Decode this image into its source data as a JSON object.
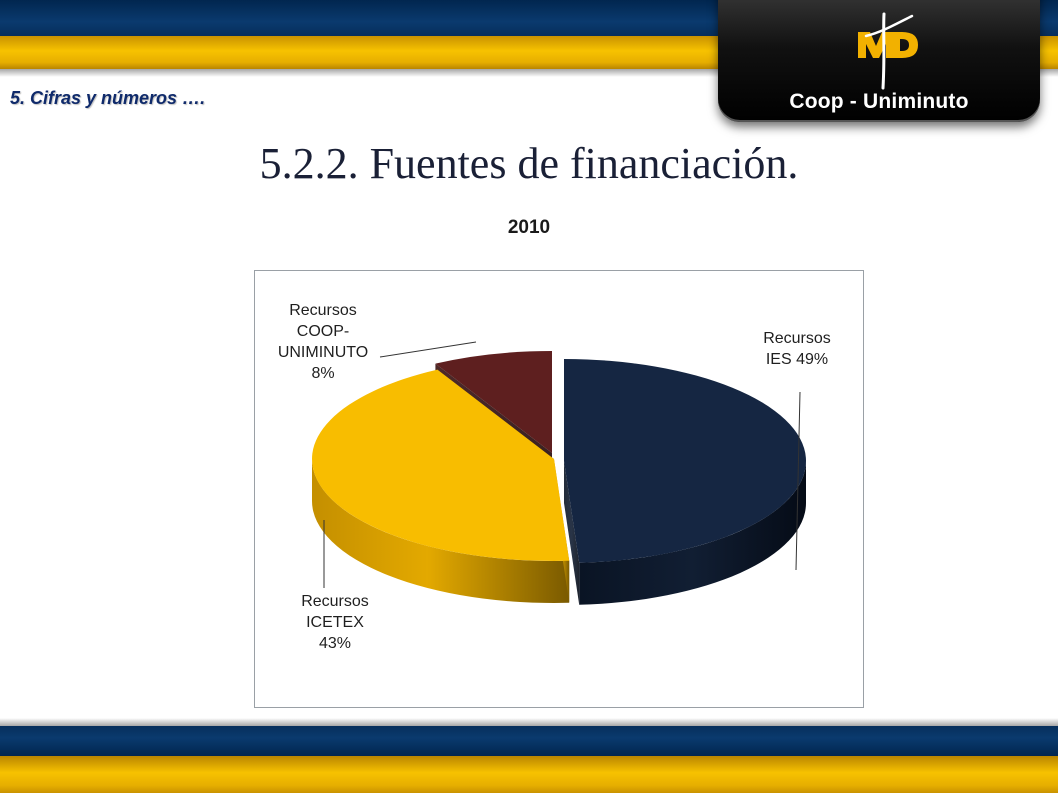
{
  "header": {
    "logo_text": "Coop - Uniminuto",
    "logo_mark_icon": "md-cross-logo-icon"
  },
  "section_label": "5. Cifras y números ….",
  "slide_title": "5.2.2. Fuentes de financiación.",
  "colors": {
    "navy": "#152642",
    "gold": "#f8bd00",
    "maroon": "#5e1f1f",
    "band_blue": "#0a3a6e",
    "band_gold": "#f7c200"
  },
  "chart_data": {
    "type": "pie",
    "title": "2010",
    "labels_on_chart": true,
    "slices": [
      {
        "name": "Recursos IES",
        "value": 49,
        "percent_label": "49%",
        "label_lines": [
          "Recursos",
          "IES 49%"
        ],
        "color": "#152642"
      },
      {
        "name": "Recursos ICETEX",
        "value": 43,
        "percent_label": "43%",
        "label_lines": [
          "Recursos",
          "ICETEX",
          "43%"
        ],
        "color": "#f8bd00"
      },
      {
        "name": "Recursos COOP-UNIMINUTO",
        "value": 8,
        "percent_label": "8%",
        "label_lines": [
          "Recursos",
          "COOP-",
          "UNIMINUTO",
          "8%"
        ],
        "color": "#5e1f1f"
      }
    ]
  }
}
